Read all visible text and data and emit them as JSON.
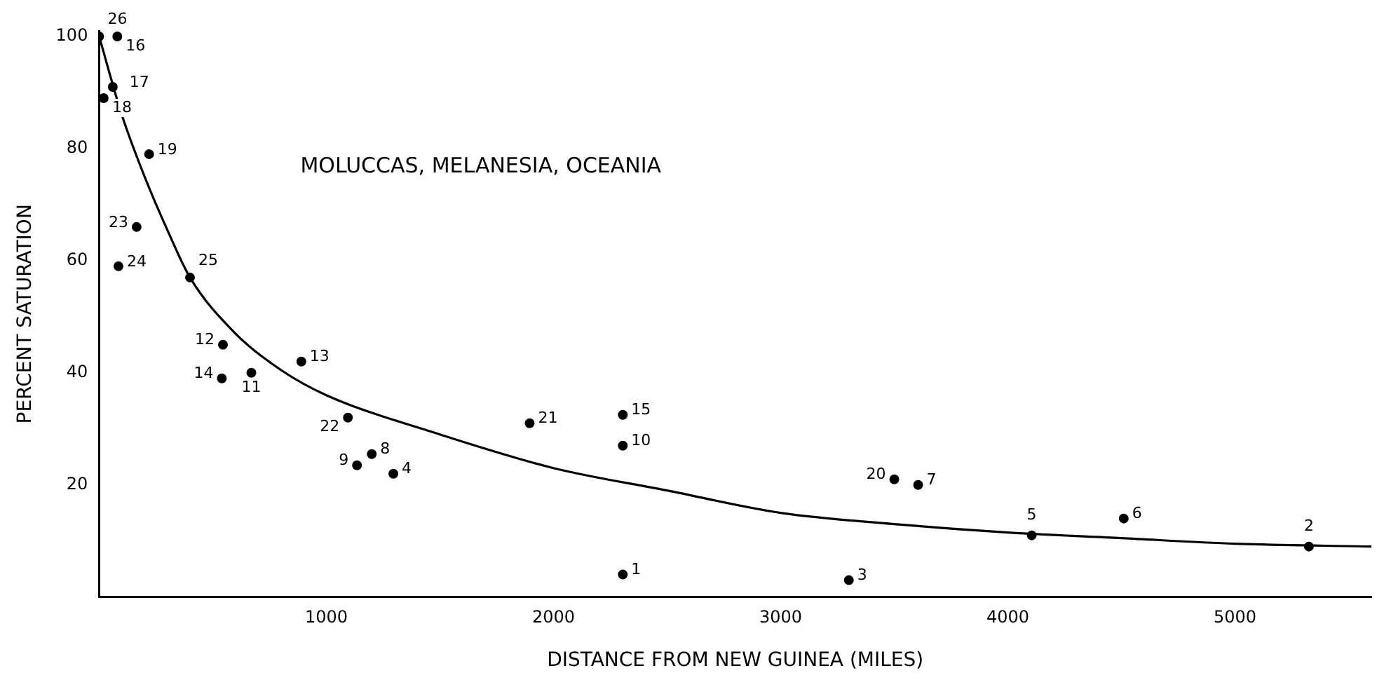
{
  "chart_data": {
    "type": "scatter",
    "xlabel": "DISTANCE FROM NEW GUINEA (MILES)",
    "ylabel": "PERCENT SATURATION",
    "xlim": [
      0,
      5600
    ],
    "xticks": [
      1000,
      2000,
      3000,
      4000,
      5000
    ],
    "ylim": [
      0,
      101
    ],
    "yticks": [
      20,
      40,
      60,
      80,
      100
    ],
    "grid": false,
    "legend": false,
    "marker": "circle",
    "series": [
      {
        "type": "scatter",
        "color": "#000000",
        "x": [
          0,
          80,
          60,
          20,
          220,
          165,
          85,
          400,
          545,
          540,
          670,
          890,
          1095,
          1200,
          1135,
          1295,
          1895,
          2305,
          2305,
          2305,
          3300,
          3500,
          3605,
          4105,
          4510,
          5325
        ],
        "values": [
          100,
          100,
          91,
          89,
          79,
          66,
          59,
          57,
          45,
          39,
          40,
          42,
          32,
          25.5,
          23.5,
          22,
          31,
          32.5,
          27,
          4,
          3,
          21,
          20,
          11,
          14,
          9
        ]
      },
      {
        "type": "line",
        "color": "#000000",
        "marker": "none",
        "line_style": "solid",
        "x": [
          0,
          100,
          200,
          300,
          400,
          600,
          800,
          1000,
          1500,
          2000,
          2500,
          3000,
          3500,
          4000,
          4500,
          5000,
          5600
        ],
        "values": [
          100,
          86,
          75,
          65.5,
          57,
          47,
          40.5,
          36,
          29,
          23,
          19,
          15,
          13,
          11.5,
          10.5,
          9.5,
          9
        ]
      }
    ],
    "annotations": [
      "MOLUCCAS, MELANESIA, OCEANIA",
      {
        "text": "26",
        "x": 0,
        "y": 100
      },
      {
        "text": "16",
        "x": 80,
        "y": 100
      },
      {
        "text": "17",
        "x": 60,
        "y": 91
      },
      {
        "text": "18",
        "x": 20,
        "y": 89
      },
      {
        "text": "19",
        "x": 220,
        "y": 79
      },
      {
        "text": "23",
        "x": 165,
        "y": 66
      },
      {
        "text": "24",
        "x": 85,
        "y": 59
      },
      {
        "text": "25",
        "x": 400,
        "y": 57
      },
      {
        "text": "12",
        "x": 545,
        "y": 45
      },
      {
        "text": "14",
        "x": 540,
        "y": 39
      },
      {
        "text": "11",
        "x": 670,
        "y": 40
      },
      {
        "text": "13",
        "x": 890,
        "y": 42
      },
      {
        "text": "22",
        "x": 1095,
        "y": 32
      },
      {
        "text": "8",
        "x": 1200,
        "y": 25.5
      },
      {
        "text": "9",
        "x": 1135,
        "y": 23.5
      },
      {
        "text": "4",
        "x": 1295,
        "y": 22
      },
      {
        "text": "21",
        "x": 1895,
        "y": 31
      },
      {
        "text": "15",
        "x": 2305,
        "y": 32.5
      },
      {
        "text": "10",
        "x": 2305,
        "y": 27
      },
      {
        "text": "1",
        "x": 2305,
        "y": 4
      },
      {
        "text": "3",
        "x": 3300,
        "y": 3
      },
      {
        "text": "20",
        "x": 3500,
        "y": 21
      },
      {
        "text": "7",
        "x": 3605,
        "y": 20
      },
      {
        "text": "5",
        "x": 4105,
        "y": 11
      },
      {
        "text": "6",
        "x": 4510,
        "y": 14
      },
      {
        "text": "2",
        "x": 5325,
        "y": 9
      }
    ]
  }
}
